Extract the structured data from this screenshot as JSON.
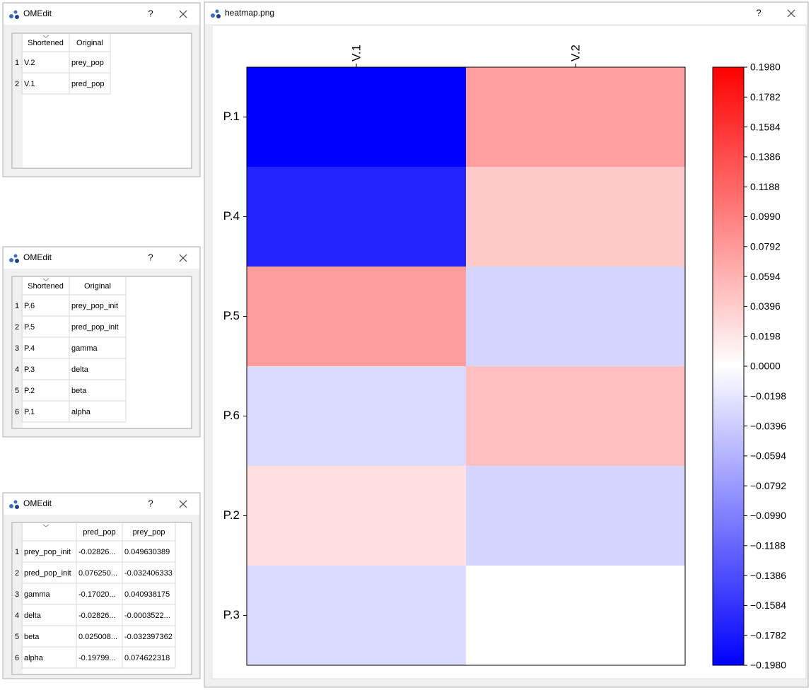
{
  "windows": [
    {
      "title": "OMEdit",
      "help": "?",
      "table": {
        "headers": [
          "Shortened",
          "Original"
        ],
        "rows": [
          {
            "index": "1",
            "cells": [
              "V.2",
              "prey_pop"
            ]
          },
          {
            "index": "2",
            "cells": [
              "V.1",
              "pred_pop"
            ]
          }
        ]
      }
    },
    {
      "title": "OMEdit",
      "help": "?",
      "table": {
        "headers": [
          "Shortened",
          "Original"
        ],
        "rows": [
          {
            "index": "1",
            "cells": [
              "P.6",
              "prey_pop_init"
            ]
          },
          {
            "index": "2",
            "cells": [
              "P.5",
              "pred_pop_init"
            ]
          },
          {
            "index": "3",
            "cells": [
              "P.4",
              "gamma"
            ]
          },
          {
            "index": "4",
            "cells": [
              "P.3",
              "delta"
            ]
          },
          {
            "index": "5",
            "cells": [
              "P.2",
              "beta"
            ]
          },
          {
            "index": "6",
            "cells": [
              "P.1",
              "alpha"
            ]
          }
        ]
      }
    },
    {
      "title": "OMEdit",
      "help": "?",
      "table": {
        "headers": [
          "pred_pop",
          "prey_pop"
        ],
        "rows": [
          {
            "index": "1",
            "label": "prey_pop_init",
            "cells": [
              "-0.02826...",
              "0.049630389"
            ]
          },
          {
            "index": "2",
            "label": "pred_pop_init",
            "cells": [
              "0.076250...",
              "-0.032406333"
            ]
          },
          {
            "index": "3",
            "label": "gamma",
            "cells": [
              "-0.17020...",
              "0.040938175"
            ]
          },
          {
            "index": "4",
            "label": "delta",
            "cells": [
              "-0.02826...",
              "-0.0003522..."
            ]
          },
          {
            "index": "5",
            "label": "beta",
            "cells": [
              "0.025008...",
              "-0.032397362"
            ]
          },
          {
            "index": "6",
            "label": "alpha",
            "cells": [
              "-0.19799...",
              "0.074622318"
            ]
          }
        ]
      }
    }
  ],
  "heatmap_window": {
    "title": "heatmap.png",
    "help": "?"
  },
  "chart_data": {
    "type": "heatmap",
    "x_categories": [
      "V.1",
      "V.2"
    ],
    "y_categories": [
      "P.1",
      "P.4",
      "P.5",
      "P.6",
      "P.2",
      "P.3"
    ],
    "values": [
      [
        -0.19799,
        0.074622318
      ],
      [
        -0.1702,
        0.040938175
      ],
      [
        0.07625,
        -0.032406333
      ],
      [
        -0.02826,
        0.049630389
      ],
      [
        0.025008,
        -0.032397362
      ],
      [
        -0.02826,
        -0.0003522
      ]
    ],
    "colormap": "bwr",
    "clim": [
      -0.198,
      0.198
    ],
    "cticks": [
      {
        "value": 0.198,
        "label": "0.1980"
      },
      {
        "value": 0.1782,
        "label": "0.1782"
      },
      {
        "value": 0.1584,
        "label": "0.1584"
      },
      {
        "value": 0.1386,
        "label": "0.1386"
      },
      {
        "value": 0.1188,
        "label": "0.1188"
      },
      {
        "value": 0.099,
        "label": "0.0990"
      },
      {
        "value": 0.0792,
        "label": "0.0792"
      },
      {
        "value": 0.0594,
        "label": "0.0594"
      },
      {
        "value": 0.0396,
        "label": "0.0396"
      },
      {
        "value": 0.0198,
        "label": "0.0198"
      },
      {
        "value": 0,
        "label": "0.0000"
      },
      {
        "value": -0.0198,
        "label": "−0.0198"
      },
      {
        "value": -0.0396,
        "label": "−0.0396"
      },
      {
        "value": -0.0594,
        "label": "−0.0594"
      },
      {
        "value": -0.0792,
        "label": "−0.0792"
      },
      {
        "value": -0.099,
        "label": "−0.0990"
      },
      {
        "value": -0.1188,
        "label": "−0.1188"
      },
      {
        "value": -0.1386,
        "label": "−0.1386"
      },
      {
        "value": -0.1584,
        "label": "−0.1584"
      },
      {
        "value": -0.1782,
        "label": "−0.1782"
      },
      {
        "value": -0.198,
        "label": "−0.1980"
      }
    ]
  }
}
